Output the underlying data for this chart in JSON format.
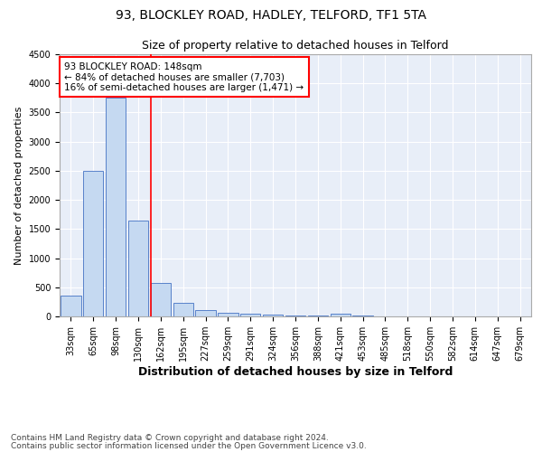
{
  "title1": "93, BLOCKLEY ROAD, HADLEY, TELFORD, TF1 5TA",
  "title2": "Size of property relative to detached houses in Telford",
  "xlabel": "Distribution of detached houses by size in Telford",
  "ylabel": "Number of detached properties",
  "categories": [
    "33sqm",
    "65sqm",
    "98sqm",
    "130sqm",
    "162sqm",
    "195sqm",
    "227sqm",
    "259sqm",
    "291sqm",
    "324sqm",
    "356sqm",
    "388sqm",
    "421sqm",
    "453sqm",
    "485sqm",
    "518sqm",
    "550sqm",
    "582sqm",
    "614sqm",
    "647sqm",
    "679sqm"
  ],
  "values": [
    350,
    2500,
    3750,
    1650,
    580,
    230,
    105,
    60,
    40,
    25,
    20,
    20,
    50,
    15,
    0,
    0,
    0,
    0,
    0,
    0,
    0
  ],
  "bar_color": "#c5d9f1",
  "bar_edge_color": "#4472c4",
  "annotation_line1": "93 BLOCKLEY ROAD: 148sqm",
  "annotation_line2": "← 84% of detached houses are smaller (7,703)",
  "annotation_line3": "16% of semi-detached houses are larger (1,471) →",
  "annotation_box_color": "white",
  "annotation_box_edge_color": "red",
  "ylim": [
    0,
    4500
  ],
  "yticks": [
    0,
    500,
    1000,
    1500,
    2000,
    2500,
    3000,
    3500,
    4000,
    4500
  ],
  "footer1": "Contains HM Land Registry data © Crown copyright and database right 2024.",
  "footer2": "Contains public sector information licensed under the Open Government Licence v3.0.",
  "background_color": "#e8eef8",
  "grid_color": "white",
  "title1_fontsize": 10,
  "title2_fontsize": 9,
  "ylabel_fontsize": 8,
  "xlabel_fontsize": 9,
  "tick_fontsize": 7,
  "footer_fontsize": 6.5,
  "annotation_fontsize": 7.5
}
